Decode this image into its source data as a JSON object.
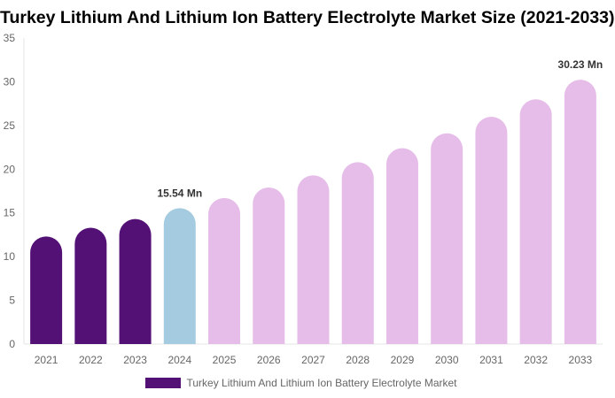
{
  "chart_data": {
    "type": "bar",
    "title": "Turkey Lithium And Lithium Ion Battery Electrolyte Market Size (2021-2033)",
    "categories": [
      "2021",
      "2022",
      "2023",
      "2024",
      "2025",
      "2026",
      "2027",
      "2028",
      "2029",
      "2030",
      "2031",
      "2032",
      "2033"
    ],
    "series": [
      {
        "name": "Turkey Lithium And Lithium Ion Battery Electrolyte Market",
        "values": [
          12.3,
          13.3,
          14.3,
          15.54,
          16.7,
          17.9,
          19.3,
          20.8,
          22.4,
          24.1,
          26.0,
          28.0,
          30.23
        ]
      }
    ],
    "bar_colors": [
      "#541175",
      "#541175",
      "#541175",
      "#a5cbe0",
      "#e6bde9",
      "#e6bde9",
      "#e6bde9",
      "#e6bde9",
      "#e6bde9",
      "#e6bde9",
      "#e6bde9",
      "#e6bde9",
      "#e6bde9"
    ],
    "legend_color": "#541175",
    "data_labels": [
      {
        "category": "2024",
        "text": "15.54 Mn"
      },
      {
        "category": "2033",
        "text": "30.23 Mn"
      }
    ],
    "yticks": [
      0,
      5,
      10,
      15,
      20,
      25,
      30,
      35
    ],
    "ylim": [
      0,
      35
    ],
    "grid": false,
    "legend_position": "bottom"
  }
}
